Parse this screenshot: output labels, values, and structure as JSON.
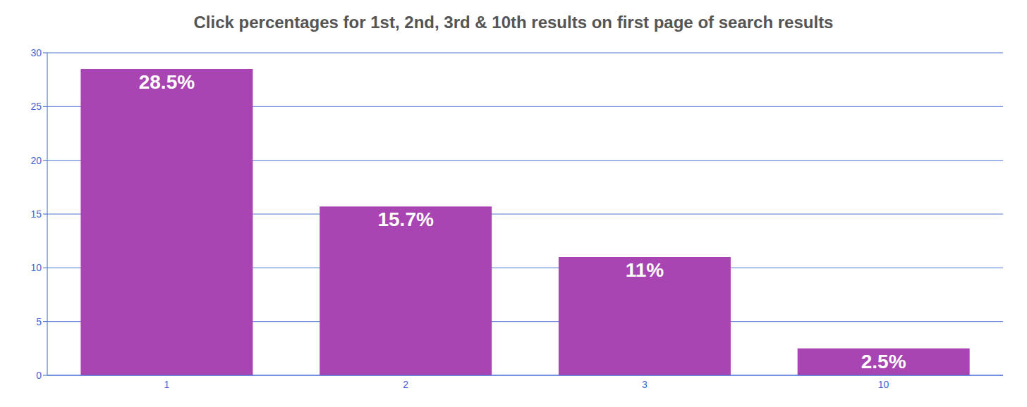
{
  "chart_data": {
    "type": "bar",
    "title": "Click percentages for 1st, 2nd, 3rd & 10th results on first page of search results",
    "categories": [
      "1",
      "2",
      "3",
      "10"
    ],
    "values": [
      28.5,
      15.7,
      11,
      2.5
    ],
    "value_labels": [
      "28.5%",
      "15.7%",
      "11%",
      "2.5%"
    ],
    "color": "#a845b2",
    "ylim": [
      0,
      30
    ],
    "yticks": [
      0,
      5,
      10,
      15,
      20,
      25,
      30
    ],
    "grid": true,
    "data_labels": true
  }
}
